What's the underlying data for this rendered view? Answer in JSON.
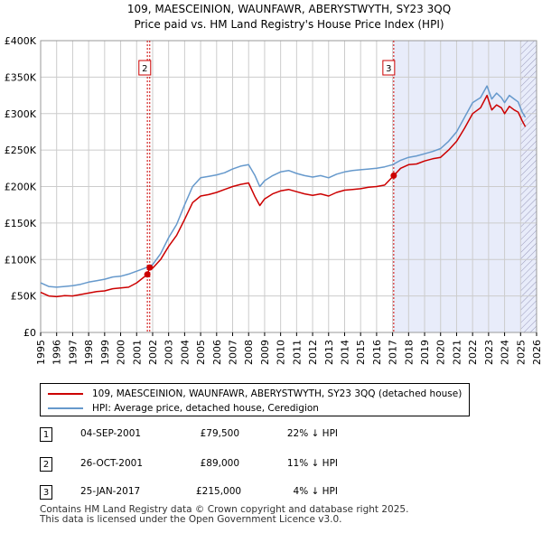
{
  "title_line1": "109, MAESCEINION, WAUNFAWR, ABERYSTWYTH, SY23 3QQ",
  "title_line2": "Price paid vs. HM Land Registry's House Price Index (HPI)",
  "colors": {
    "price_paid": "#cc0000",
    "hpi": "#6699cc",
    "shade": "#e8ecfa",
    "grid": "#cccccc",
    "marker_line": "#cc0000"
  },
  "chart_data": {
    "type": "line",
    "x_range": [
      1995,
      2026
    ],
    "y_range": [
      0,
      400000
    ],
    "y_ticks": [
      {
        "value": 0,
        "label": "£0"
      },
      {
        "value": 50000,
        "label": "£50K"
      },
      {
        "value": 100000,
        "label": "£100K"
      },
      {
        "value": 150000,
        "label": "£150K"
      },
      {
        "value": 200000,
        "label": "£200K"
      },
      {
        "value": 250000,
        "label": "£250K"
      },
      {
        "value": 300000,
        "label": "£300K"
      },
      {
        "value": 350000,
        "label": "£350K"
      },
      {
        "value": 400000,
        "label": "£400K"
      }
    ],
    "x_ticks": [
      "1995",
      "1996",
      "1997",
      "1998",
      "1999",
      "2000",
      "2001",
      "2002",
      "2003",
      "2004",
      "2005",
      "2006",
      "2007",
      "2008",
      "2009",
      "2010",
      "2011",
      "2012",
      "2013",
      "2014",
      "2015",
      "2016",
      "2017",
      "2018",
      "2019",
      "2020",
      "2021",
      "2022",
      "2023",
      "2024",
      "2025",
      "2026"
    ],
    "shaded_from": 2017.07,
    "hatched_from": 2025.0,
    "series": [
      {
        "name": "109, MAESCEINION, WAUNFAWR, ABERYSTWYTH, SY23 3QQ (detached house)",
        "role": "price_paid",
        "points": [
          [
            1995.0,
            55000
          ],
          [
            1995.5,
            50000
          ],
          [
            1996.0,
            49000
          ],
          [
            1996.5,
            50500
          ],
          [
            1997.0,
            50000
          ],
          [
            1997.5,
            52000
          ],
          [
            1998.0,
            54000
          ],
          [
            1998.5,
            56000
          ],
          [
            1999.0,
            57000
          ],
          [
            1999.5,
            60000
          ],
          [
            2000.0,
            61000
          ],
          [
            2000.5,
            62000
          ],
          [
            2001.0,
            68000
          ],
          [
            2001.67,
            79500
          ],
          [
            2001.82,
            89000
          ],
          [
            2002.0,
            88000
          ],
          [
            2002.5,
            100000
          ],
          [
            2003.0,
            118000
          ],
          [
            2003.5,
            133000
          ],
          [
            2004.0,
            155000
          ],
          [
            2004.5,
            178000
          ],
          [
            2005.0,
            187000
          ],
          [
            2005.5,
            189000
          ],
          [
            2006.0,
            192000
          ],
          [
            2006.5,
            196000
          ],
          [
            2007.0,
            200000
          ],
          [
            2007.5,
            203000
          ],
          [
            2008.0,
            205000
          ],
          [
            2008.4,
            186000
          ],
          [
            2008.7,
            174000
          ],
          [
            2009.0,
            183000
          ],
          [
            2009.5,
            190000
          ],
          [
            2010.0,
            194000
          ],
          [
            2010.5,
            196000
          ],
          [
            2011.0,
            193000
          ],
          [
            2011.5,
            190000
          ],
          [
            2012.0,
            188000
          ],
          [
            2012.5,
            190000
          ],
          [
            2013.0,
            187000
          ],
          [
            2013.5,
            192000
          ],
          [
            2014.0,
            195000
          ],
          [
            2014.5,
            196000
          ],
          [
            2015.0,
            197000
          ],
          [
            2015.5,
            199000
          ],
          [
            2016.0,
            200000
          ],
          [
            2016.5,
            202000
          ],
          [
            2017.07,
            215000
          ],
          [
            2017.5,
            225000
          ],
          [
            2018.0,
            230000
          ],
          [
            2018.5,
            231000
          ],
          [
            2019.0,
            235000
          ],
          [
            2019.5,
            238000
          ],
          [
            2020.0,
            240000
          ],
          [
            2020.5,
            250000
          ],
          [
            2021.0,
            262000
          ],
          [
            2021.5,
            280000
          ],
          [
            2022.0,
            300000
          ],
          [
            2022.5,
            308000
          ],
          [
            2022.9,
            325000
          ],
          [
            2023.2,
            305000
          ],
          [
            2023.5,
            312000
          ],
          [
            2023.8,
            308000
          ],
          [
            2024.0,
            300000
          ],
          [
            2024.3,
            310000
          ],
          [
            2024.6,
            305000
          ],
          [
            2024.85,
            302000
          ],
          [
            2025.1,
            290000
          ],
          [
            2025.3,
            282000
          ]
        ]
      },
      {
        "name": "HPI: Average price, detached house, Ceredigion",
        "role": "hpi",
        "points": [
          [
            1995.0,
            68000
          ],
          [
            1995.5,
            63000
          ],
          [
            1996.0,
            62000
          ],
          [
            1996.5,
            63000
          ],
          [
            1997.0,
            64000
          ],
          [
            1997.5,
            66000
          ],
          [
            1998.0,
            69000
          ],
          [
            1998.5,
            71000
          ],
          [
            1999.0,
            73000
          ],
          [
            1999.5,
            76000
          ],
          [
            2000.0,
            77000
          ],
          [
            2000.5,
            80000
          ],
          [
            2001.0,
            84000
          ],
          [
            2001.5,
            88000
          ],
          [
            2002.0,
            93000
          ],
          [
            2002.5,
            108000
          ],
          [
            2003.0,
            130000
          ],
          [
            2003.5,
            148000
          ],
          [
            2004.0,
            175000
          ],
          [
            2004.5,
            200000
          ],
          [
            2005.0,
            212000
          ],
          [
            2005.5,
            214000
          ],
          [
            2006.0,
            216000
          ],
          [
            2006.5,
            219000
          ],
          [
            2007.0,
            224000
          ],
          [
            2007.5,
            228000
          ],
          [
            2008.0,
            230000
          ],
          [
            2008.4,
            215000
          ],
          [
            2008.7,
            200000
          ],
          [
            2009.0,
            208000
          ],
          [
            2009.5,
            215000
          ],
          [
            2010.0,
            220000
          ],
          [
            2010.5,
            222000
          ],
          [
            2011.0,
            218000
          ],
          [
            2011.5,
            215000
          ],
          [
            2012.0,
            213000
          ],
          [
            2012.5,
            215000
          ],
          [
            2013.0,
            212000
          ],
          [
            2013.5,
            217000
          ],
          [
            2014.0,
            220000
          ],
          [
            2014.5,
            222000
          ],
          [
            2015.0,
            223000
          ],
          [
            2015.5,
            224000
          ],
          [
            2016.0,
            225000
          ],
          [
            2016.5,
            227000
          ],
          [
            2017.0,
            230000
          ],
          [
            2017.5,
            236000
          ],
          [
            2018.0,
            240000
          ],
          [
            2018.5,
            242000
          ],
          [
            2019.0,
            245000
          ],
          [
            2019.5,
            248000
          ],
          [
            2020.0,
            252000
          ],
          [
            2020.5,
            262000
          ],
          [
            2021.0,
            275000
          ],
          [
            2021.5,
            295000
          ],
          [
            2022.0,
            315000
          ],
          [
            2022.5,
            322000
          ],
          [
            2022.9,
            338000
          ],
          [
            2023.2,
            320000
          ],
          [
            2023.5,
            328000
          ],
          [
            2023.8,
            322000
          ],
          [
            2024.0,
            315000
          ],
          [
            2024.3,
            325000
          ],
          [
            2024.6,
            320000
          ],
          [
            2024.85,
            316000
          ],
          [
            2025.1,
            302000
          ],
          [
            2025.3,
            295000
          ]
        ]
      }
    ],
    "sale_markers": [
      {
        "label": "1",
        "x": 2001.67,
        "y": 79500
      },
      {
        "label": "2",
        "x": 2001.82,
        "y": 89000
      },
      {
        "label": "3",
        "x": 2017.07,
        "y": 215000
      }
    ],
    "marker_boxes": [
      {
        "label": "2",
        "x": 2001.82
      },
      {
        "label": "3",
        "x": 2017.07
      }
    ]
  },
  "legend": {
    "price_paid_label": "109, MAESCEINION, WAUNFAWR, ABERYSTWYTH, SY23 3QQ (detached house)",
    "hpi_label": "HPI: Average price, detached house, Ceredigion"
  },
  "sales": [
    {
      "num": "1",
      "date": "04-SEP-2001",
      "price": "£79,500",
      "hpi": "22% ↓ HPI"
    },
    {
      "num": "2",
      "date": "26-OCT-2001",
      "price": "£89,000",
      "hpi": "11% ↓ HPI"
    },
    {
      "num": "3",
      "date": "25-JAN-2017",
      "price": "£215,000",
      "hpi": "4% ↓ HPI"
    }
  ],
  "footer": {
    "line1": "Contains HM Land Registry data © Crown copyright and database right 2025.",
    "line2": "This data is licensed under the Open Government Licence v3.0."
  }
}
